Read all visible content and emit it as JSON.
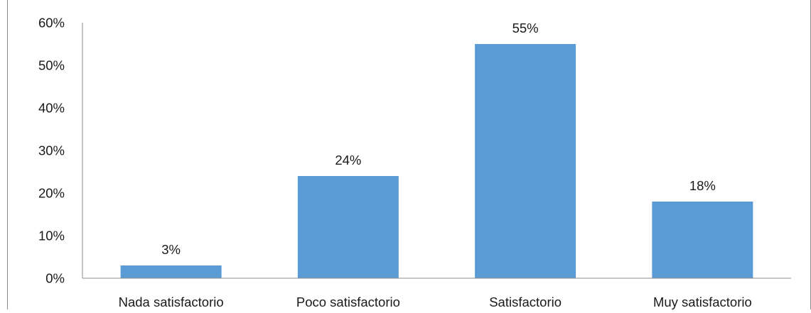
{
  "chart_data": {
    "type": "bar",
    "categories": [
      "Nada satisfactorio",
      "Poco satisfactorio",
      "Satisfactorio",
      "Muy satisfactorio"
    ],
    "values": [
      3,
      24,
      55,
      18
    ],
    "data_labels": [
      "3%",
      "24%",
      "55%",
      "18%"
    ],
    "y_ticks": [
      0,
      10,
      20,
      30,
      40,
      50,
      60
    ],
    "y_tick_labels": [
      "0%",
      "10%",
      "20%",
      "30%",
      "40%",
      "50%",
      "60%"
    ],
    "ylim": [
      0,
      60
    ],
    "title": "",
    "xlabel": "",
    "ylabel": "",
    "grid": false,
    "legend": "none",
    "bar_color": "#5B9BD5",
    "axis_color": "#8C8C8C"
  }
}
